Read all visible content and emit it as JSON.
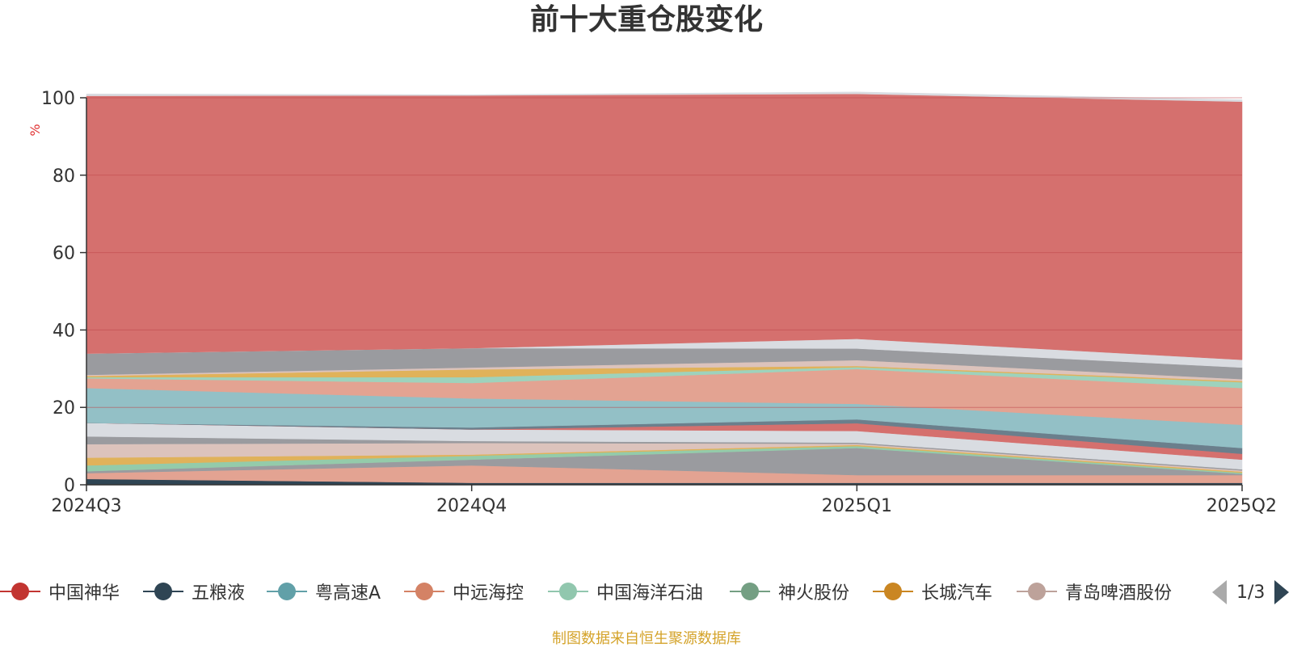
{
  "title": "前十大重仓股变化",
  "source_note": "制图数据来自恒生聚源数据库",
  "pager": {
    "label": "1/3"
  },
  "colors": {
    "axis": "#333333",
    "grid": "#c0474a",
    "title": "#333333",
    "unit_label": "#e03030",
    "source_note": "#d4a32a"
  },
  "chart_data": {
    "type": "area",
    "stacked": true,
    "title": "前十大重仓股变化",
    "ylabel": "%",
    "categories": [
      "2024Q3",
      "2024Q4",
      "2025Q1",
      "2025Q2"
    ],
    "ylim": [
      0,
      100
    ],
    "yticks": [
      0,
      20,
      40,
      60,
      80,
      100
    ],
    "grid": true,
    "legend_position": "bottom",
    "series": [
      {
        "color": "#2f4554",
        "values": [
          1.5,
          0.5,
          0.5,
          0.5
        ]
      },
      {
        "color": "#e3a392",
        "values": [
          1.5,
          4.5,
          2.0,
          2.0
        ]
      },
      {
        "color": "#9a9b9f",
        "values": [
          0.5,
          1.5,
          7.0,
          0.3
        ]
      },
      {
        "color": "#94cbaa",
        "values": [
          1.5,
          1.0,
          0.5,
          0.3
        ]
      },
      {
        "color": "#e0b25a",
        "values": [
          2.0,
          0.3,
          0.3,
          0.3
        ]
      },
      {
        "color": "#dcc3bc",
        "values": [
          3.5,
          3.0,
          0.3,
          0.3
        ]
      },
      {
        "color": "#9a9b9f",
        "values": [
          2.0,
          0.5,
          0.3,
          0.3
        ]
      },
      {
        "color": "#d9dce1",
        "values": [
          3.5,
          3.0,
          3.0,
          2.5
        ]
      },
      {
        "color": "#d5706e",
        "values": [
          0.0,
          0.0,
          2.0,
          1.5
        ]
      },
      {
        "color": "#6b7f8c",
        "values": [
          0.0,
          0.5,
          1.0,
          1.5
        ]
      },
      {
        "color": "#93c0c6",
        "values": [
          9.0,
          7.5,
          4.0,
          6.0
        ]
      },
      {
        "color": "#e3a392",
        "values": [
          2.5,
          4.0,
          9.0,
          9.5
        ]
      },
      {
        "color": "#9ed2bc",
        "values": [
          0.3,
          1.5,
          0.5,
          1.5
        ]
      },
      {
        "color": "#e0b25a",
        "values": [
          0.3,
          2.0,
          0.3,
          0.3
        ]
      },
      {
        "color": "#dcc3bc",
        "values": [
          0.3,
          0.5,
          1.5,
          0.5
        ]
      },
      {
        "color": "#9a9b9f",
        "values": [
          5.5,
          5.0,
          3.0,
          3.0
        ]
      },
      {
        "color": "#d9dce1",
        "values": [
          0.0,
          0.0,
          2.5,
          2.0
        ]
      },
      {
        "color": "#d5706e",
        "values": [
          66.6,
          65.3,
          63.3,
          66.7
        ]
      },
      {
        "color": "#d9dce1",
        "values": [
          0.5,
          0.2,
          0.5,
          0.5
        ]
      }
    ],
    "legend": [
      {
        "name": "中国神华",
        "color": "#c23531"
      },
      {
        "name": "五粮液",
        "color": "#2f4554"
      },
      {
        "name": "粤高速A",
        "color": "#61a0a8"
      },
      {
        "name": "中远海控",
        "color": "#d48265"
      },
      {
        "name": "中国海洋石油",
        "color": "#91c7ae"
      },
      {
        "name": "神火股份",
        "color": "#749f83"
      },
      {
        "name": "长城汽车",
        "color": "#ca8622"
      },
      {
        "name": "青岛啤酒股份",
        "color": "#bda29a"
      }
    ]
  }
}
